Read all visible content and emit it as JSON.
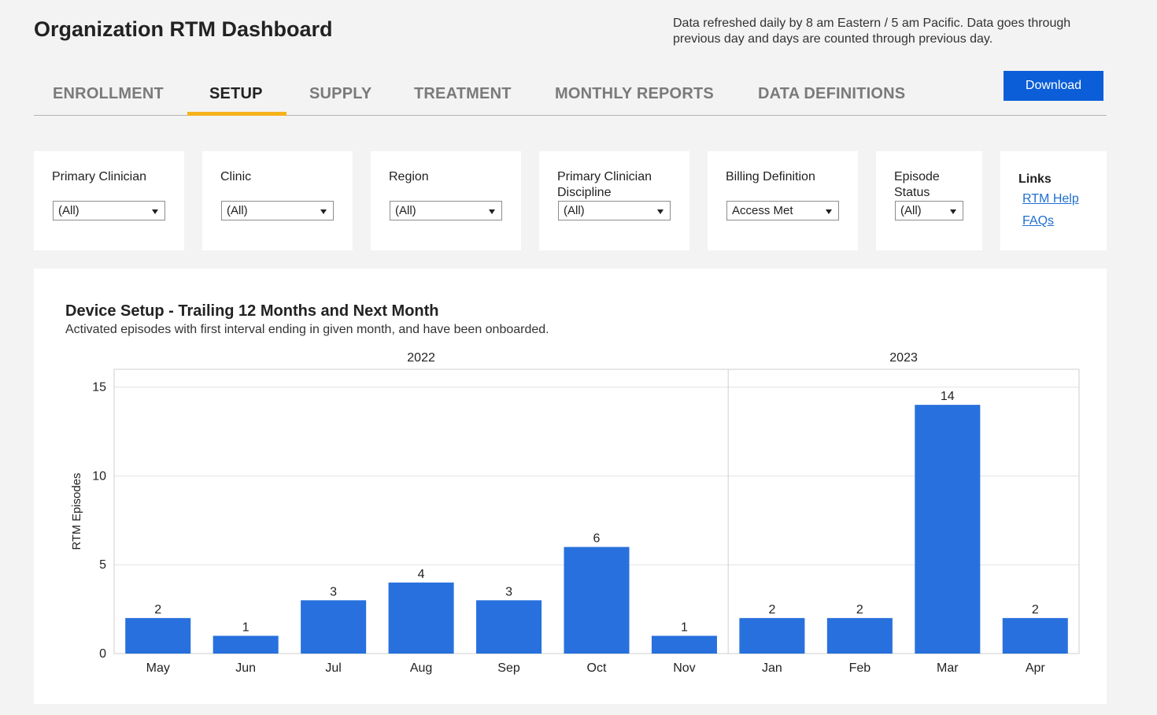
{
  "header": {
    "title": "Organization RTM Dashboard",
    "refresh_note": "Data refreshed daily by 8 am Eastern / 5 am Pacific. Data goes through previous day and days are counted through previous day."
  },
  "tabs": [
    {
      "label": "ENROLLMENT",
      "active": false
    },
    {
      "label": "SETUP",
      "active": true
    },
    {
      "label": "SUPPLY",
      "active": false
    },
    {
      "label": "TREATMENT",
      "active": false
    },
    {
      "label": "MONTHLY REPORTS",
      "active": false
    },
    {
      "label": "DATA DEFINITIONS",
      "active": false
    }
  ],
  "download_label": "Download",
  "colors": {
    "accent_tab": "#f5b21b",
    "download_button": "#0b5ed7",
    "bar": "#2870dd",
    "link": "#1f6fd1"
  },
  "filters": [
    {
      "label": "Primary Clinician",
      "value": "(All)"
    },
    {
      "label": "Clinic",
      "value": "(All)"
    },
    {
      "label": "Region",
      "value": "(All)"
    },
    {
      "label": "Primary Clinician Discipline",
      "value": "(All)"
    },
    {
      "label": "Billing Definition",
      "value": "Access Met"
    },
    {
      "label": "Episode Status",
      "value": "(All)"
    }
  ],
  "links": {
    "title": "Links",
    "items": [
      "RTM Help",
      "FAQs"
    ]
  },
  "chart": {
    "title": "Device Setup - Trailing 12 Months and Next Month",
    "subtitle": "Activated episodes with first interval ending in given month, and have been onboarded."
  },
  "chart_data": {
    "type": "bar",
    "title": "Device Setup - Trailing 12 Months and Next Month",
    "ylabel": "RTM Episodes",
    "xlabel": "",
    "ylim": [
      0,
      16
    ],
    "yticks": [
      0,
      5,
      10,
      15
    ],
    "grid": true,
    "groups": [
      {
        "label": "2022",
        "categories": [
          "May",
          "Jun",
          "Jul",
          "Aug",
          "Sep",
          "Oct",
          "Nov"
        ],
        "values": [
          2,
          1,
          3,
          4,
          3,
          6,
          1
        ]
      },
      {
        "label": "2023",
        "categories": [
          "Jan",
          "Feb",
          "Mar",
          "Apr"
        ],
        "values": [
          2,
          2,
          14,
          2
        ]
      }
    ]
  }
}
